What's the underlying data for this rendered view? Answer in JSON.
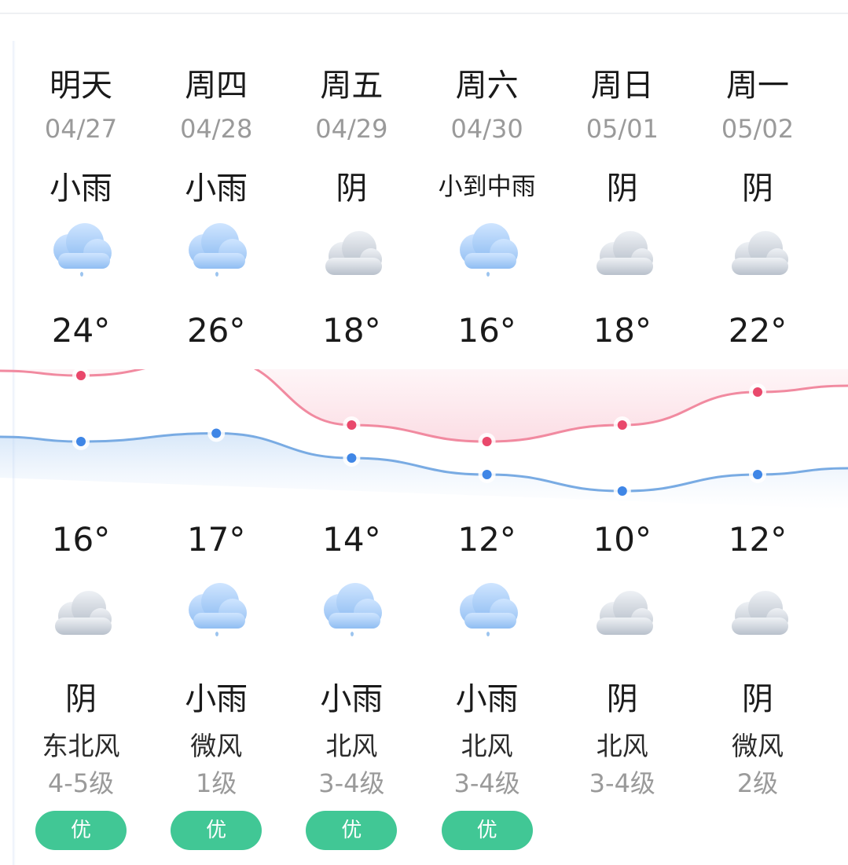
{
  "colors": {
    "high_line": "#f18aa0",
    "high_dot": "#e9486b",
    "low_line": "#79abe3",
    "low_dot": "#3f86e6",
    "aqi_badge": "#41c795"
  },
  "days": [
    {
      "day": "明天",
      "date": "04/27",
      "day_cond": "小雨",
      "day_icon": "rain-cloud-icon",
      "high": 24,
      "high_label": "24°",
      "low": 16,
      "low_label": "16°",
      "night_icon": "overcast-cloud-icon",
      "night_cond": "阴",
      "wind": "东北风",
      "level": "4-5级",
      "aqi": "优"
    },
    {
      "day": "周四",
      "date": "04/28",
      "day_cond": "小雨",
      "day_icon": "rain-cloud-icon",
      "high": 26,
      "high_label": "26°",
      "low": 17,
      "low_label": "17°",
      "night_icon": "rain-cloud-icon",
      "night_cond": "小雨",
      "wind": "微风",
      "level": "1级",
      "aqi": "优"
    },
    {
      "day": "周五",
      "date": "04/29",
      "day_cond": "阴",
      "day_icon": "overcast-cloud-icon",
      "high": 18,
      "high_label": "18°",
      "low": 14,
      "low_label": "14°",
      "night_icon": "rain-cloud-icon",
      "night_cond": "小雨",
      "wind": "北风",
      "level": "3-4级",
      "aqi": "优"
    },
    {
      "day": "周六",
      "date": "04/30",
      "day_cond": "小到中雨",
      "day_icon": "rain-cloud-icon",
      "high": 16,
      "high_label": "16°",
      "low": 12,
      "low_label": "12°",
      "night_icon": "rain-cloud-icon",
      "night_cond": "小雨",
      "wind": "北风",
      "level": "3-4级",
      "aqi": "优"
    },
    {
      "day": "周日",
      "date": "05/01",
      "day_cond": "阴",
      "day_icon": "overcast-cloud-icon",
      "high": 18,
      "high_label": "18°",
      "low": 10,
      "low_label": "10°",
      "night_icon": "overcast-cloud-icon",
      "night_cond": "阴",
      "wind": "北风",
      "level": "3-4级",
      "aqi": ""
    },
    {
      "day": "周一",
      "date": "05/02",
      "day_cond": "阴",
      "day_icon": "overcast-cloud-icon",
      "high": 22,
      "high_label": "22°",
      "low": 12,
      "low_label": "12°",
      "night_icon": "overcast-cloud-icon",
      "night_cond": "阴",
      "wind": "微风",
      "level": "2级",
      "aqi": ""
    }
  ],
  "chart_data": {
    "type": "line",
    "categories": [
      "04/27",
      "04/28",
      "04/29",
      "04/30",
      "05/01",
      "05/02"
    ],
    "series": [
      {
        "values": [
          24,
          26,
          18,
          16,
          18,
          22
        ]
      },
      {
        "values": [
          16,
          17,
          14,
          12,
          10,
          12
        ]
      }
    ],
    "ylim": [
      8,
      28
    ]
  }
}
